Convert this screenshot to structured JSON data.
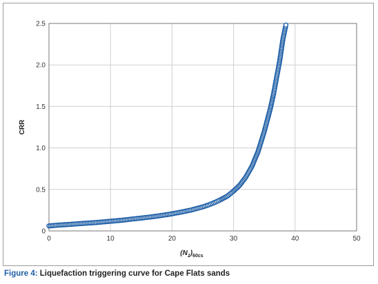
{
  "caption": {
    "figure_label": "Figure 4:",
    "text": "Liquefaction triggering curve for Cape Flats sands"
  },
  "chart_data": {
    "type": "scatter",
    "title": "",
    "xlabel": {
      "base": "(N",
      "sub1": "1",
      "mid": ")",
      "sub2": "60cs"
    },
    "ylabel": "CRR",
    "xlim": [
      0,
      50
    ],
    "ylim": [
      0,
      2.5
    ],
    "xticks": [
      0,
      10,
      20,
      30,
      40,
      50
    ],
    "yticks": [
      0,
      0.5,
      1.0,
      1.5,
      2.0,
      2.5
    ],
    "ytick_labels": [
      "0",
      "0.5",
      "1.0",
      "1.5",
      "2.0",
      "2.5"
    ],
    "grid": true,
    "marker": "open-circle",
    "marker_color": "#1f5fa6",
    "series": [
      {
        "x": [
          0.0,
          1.5,
          3.0,
          4.5,
          6.0,
          7.5,
          9.0,
          10.5,
          12.0,
          13.5,
          15.0,
          16.5,
          18.0,
          19.5,
          21.0,
          22.0,
          23.0,
          24.0,
          25.0,
          26.0,
          27.0,
          28.0,
          29.0,
          30.0,
          31.0,
          32.0,
          33.0,
          34.0,
          35.0,
          36.0,
          36.5,
          37.0,
          37.5,
          38.0,
          38.5
        ],
        "y": [
          0.06,
          0.07,
          0.077,
          0.085,
          0.093,
          0.1,
          0.11,
          0.12,
          0.13,
          0.143,
          0.155,
          0.168,
          0.183,
          0.2,
          0.22,
          0.235,
          0.25,
          0.27,
          0.29,
          0.315,
          0.345,
          0.38,
          0.42,
          0.48,
          0.55,
          0.65,
          0.78,
          0.96,
          1.2,
          1.48,
          1.65,
          1.85,
          2.05,
          2.3,
          2.48
        ]
      }
    ]
  }
}
